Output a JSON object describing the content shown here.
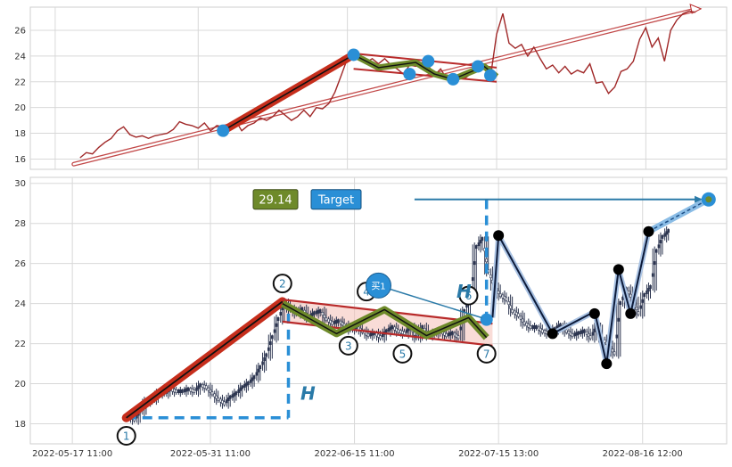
{
  "colors": {
    "price_line": "#a02828",
    "candle": "#2c3550",
    "trend_fill": "#c62e1c",
    "pattern_fill": "#6e8a2a",
    "channel": "#b82a2a",
    "marker": "#2a8fd6",
    "target_box": "#2a8fd6",
    "value_box": "#6e8a2a",
    "wave_line": "#0d1b3a",
    "grid": "#d8d8d8"
  },
  "chart_data": [
    {
      "type": "line",
      "panel": "top",
      "x_range": [
        0,
        100
      ],
      "ylim": [
        15.2,
        27.8
      ],
      "y_ticks": [
        16,
        18,
        20,
        22,
        24,
        26
      ],
      "grid": true,
      "price_path": [
        [
          4,
          16.1
        ],
        [
          5,
          16.5
        ],
        [
          6,
          16.4
        ],
        [
          7,
          16.9
        ],
        [
          8,
          17.3
        ],
        [
          9,
          17.6
        ],
        [
          10,
          18.2
        ],
        [
          11,
          18.5
        ],
        [
          12,
          17.9
        ],
        [
          13,
          17.7
        ],
        [
          14,
          17.8
        ],
        [
          15,
          17.6
        ],
        [
          16,
          17.8
        ],
        [
          17,
          17.9
        ],
        [
          18,
          18.0
        ],
        [
          19,
          18.3
        ],
        [
          20,
          18.9
        ],
        [
          21,
          18.7
        ],
        [
          22,
          18.6
        ],
        [
          23,
          18.4
        ],
        [
          24,
          18.8
        ],
        [
          25,
          18.2
        ],
        [
          26,
          18.6
        ],
        [
          27,
          18.5
        ],
        [
          28,
          18.4
        ],
        [
          29,
          19.0
        ],
        [
          30,
          18.2
        ],
        [
          31,
          18.6
        ],
        [
          32,
          18.8
        ],
        [
          33,
          19.2
        ],
        [
          34,
          19.0
        ],
        [
          35,
          19.3
        ],
        [
          36,
          19.8
        ],
        [
          37,
          19.4
        ],
        [
          38,
          19.0
        ],
        [
          39,
          19.3
        ],
        [
          40,
          19.8
        ],
        [
          41,
          19.3
        ],
        [
          42,
          20.0
        ],
        [
          43,
          19.9
        ],
        [
          44,
          20.3
        ],
        [
          45,
          21.2
        ],
        [
          46,
          22.5
        ],
        [
          47,
          23.8
        ],
        [
          48,
          24.1
        ],
        [
          49,
          23.9
        ],
        [
          50,
          23.5
        ],
        [
          51,
          23.8
        ],
        [
          52,
          23.4
        ],
        [
          53,
          23.8
        ],
        [
          54,
          23.3
        ],
        [
          55,
          23.0
        ],
        [
          56,
          22.6
        ],
        [
          57,
          23.3
        ],
        [
          58,
          23.2
        ],
        [
          59,
          23.5
        ],
        [
          60,
          23.3
        ],
        [
          61,
          22.5
        ],
        [
          62,
          23.0
        ],
        [
          63,
          22.2
        ],
        [
          64,
          22.0
        ],
        [
          65,
          22.5
        ],
        [
          66,
          22.3
        ],
        [
          67,
          22.7
        ],
        [
          68,
          23.2
        ],
        [
          69,
          23.3
        ],
        [
          70,
          22.3
        ],
        [
          71,
          25.7
        ],
        [
          72,
          27.3
        ],
        [
          73,
          25.0
        ],
        [
          74,
          24.6
        ],
        [
          75,
          24.9
        ],
        [
          76,
          24.0
        ],
        [
          77,
          24.7
        ],
        [
          78,
          23.8
        ],
        [
          79,
          23.0
        ],
        [
          80,
          23.3
        ],
        [
          81,
          22.7
        ],
        [
          82,
          23.2
        ],
        [
          83,
          22.6
        ],
        [
          84,
          22.9
        ],
        [
          85,
          22.7
        ],
        [
          86,
          23.4
        ],
        [
          87,
          21.9
        ],
        [
          88,
          22.0
        ],
        [
          89,
          21.1
        ],
        [
          90,
          21.6
        ],
        [
          91,
          22.8
        ],
        [
          92,
          23.0
        ],
        [
          93,
          23.6
        ],
        [
          94,
          25.3
        ],
        [
          95,
          26.2
        ],
        [
          96,
          24.7
        ],
        [
          97,
          25.4
        ],
        [
          98,
          23.6
        ],
        [
          99,
          26.0
        ],
        [
          100,
          26.8
        ],
        [
          101,
          27.3
        ],
        [
          102,
          27.5
        ],
        [
          103,
          27.4
        ]
      ],
      "regression_line": [
        [
          3,
          15.6
        ],
        [
          103,
          27.6
        ]
      ],
      "trend_leg": [
        [
          27,
          18.2
        ],
        [
          48,
          24.1
        ]
      ],
      "pattern_points": [
        [
          48,
          24.1
        ],
        [
          52,
          23.1
        ],
        [
          58,
          23.5
        ],
        [
          61,
          22.6
        ],
        [
          64,
          22.2
        ],
        [
          69,
          23.2
        ],
        [
          71,
          22.4
        ]
      ],
      "upper_channel": [
        [
          48,
          24.2
        ],
        [
          71,
          23.1
        ]
      ],
      "lower_channel": [
        [
          48,
          23.0
        ],
        [
          71,
          22.0
        ]
      ],
      "markers": [
        [
          27,
          18.2
        ],
        [
          48,
          24.1
        ],
        [
          57,
          22.6
        ],
        [
          60,
          23.6
        ],
        [
          64,
          22.2
        ],
        [
          68,
          23.2
        ],
        [
          70,
          22.5
        ]
      ]
    },
    {
      "type": "candlestick",
      "panel": "bottom",
      "x_range": [
        0,
        100
      ],
      "ylim": [
        17.0,
        30.3
      ],
      "y_ticks": [
        18,
        20,
        22,
        24,
        26,
        28,
        30
      ],
      "x_tick_positions": [
        0,
        23,
        47,
        71,
        95
      ],
      "x_tick_labels": [
        "2022-05-17 11:00",
        "2022-05-31 11:00",
        "2022-06-15 11:00",
        "2022-07-15 13:00",
        "2022-08-16 12:00"
      ],
      "grid": true,
      "close_path": [
        [
          9,
          18.4
        ],
        [
          10,
          18.2
        ],
        [
          11,
          18.6
        ],
        [
          12,
          19.1
        ],
        [
          13,
          19.2
        ],
        [
          14,
          19.5
        ],
        [
          15,
          19.5
        ],
        [
          16,
          19.7
        ],
        [
          17,
          19.6
        ],
        [
          18,
          19.6
        ],
        [
          19,
          19.7
        ],
        [
          20,
          19.6
        ],
        [
          21,
          19.9
        ],
        [
          22,
          19.8
        ],
        [
          23,
          19.5
        ],
        [
          24,
          19.2
        ],
        [
          25,
          19.0
        ],
        [
          26,
          19.3
        ],
        [
          27,
          19.5
        ],
        [
          28,
          19.8
        ],
        [
          29,
          20.0
        ],
        [
          30,
          20.3
        ],
        [
          31,
          20.8
        ],
        [
          32,
          21.4
        ],
        [
          33,
          22.3
        ],
        [
          34,
          23.2
        ],
        [
          35,
          24.0
        ],
        [
          36,
          23.7
        ],
        [
          37,
          23.5
        ],
        [
          38,
          23.7
        ],
        [
          39,
          23.3
        ],
        [
          40,
          23.5
        ],
        [
          41,
          23.6
        ],
        [
          42,
          23.2
        ],
        [
          43,
          23.0
        ],
        [
          44,
          23.1
        ],
        [
          45,
          22.9
        ],
        [
          46,
          22.7
        ],
        [
          47,
          22.8
        ],
        [
          48,
          22.6
        ],
        [
          49,
          22.4
        ],
        [
          50,
          22.5
        ],
        [
          51,
          22.3
        ],
        [
          52,
          22.6
        ],
        [
          53,
          22.8
        ],
        [
          54,
          22.6
        ],
        [
          55,
          22.5
        ],
        [
          56,
          22.8
        ],
        [
          57,
          22.3
        ],
        [
          58,
          22.8
        ],
        [
          59,
          22.4
        ],
        [
          60,
          22.5
        ],
        [
          61,
          22.6
        ],
        [
          62,
          22.4
        ],
        [
          63,
          22.5
        ],
        [
          64,
          22.3
        ],
        [
          65,
          23.6
        ],
        [
          66,
          24.4
        ],
        [
          67,
          26.8
        ],
        [
          68,
          27.2
        ],
        [
          69,
          25.6
        ],
        [
          70,
          24.8
        ],
        [
          71,
          24.4
        ],
        [
          72,
          24.2
        ],
        [
          73,
          23.6
        ],
        [
          74,
          23.4
        ],
        [
          75,
          23.0
        ],
        [
          76,
          22.8
        ],
        [
          77,
          22.8
        ],
        [
          78,
          22.6
        ],
        [
          79,
          22.5
        ],
        [
          80,
          22.7
        ],
        [
          81,
          22.9
        ],
        [
          82,
          22.6
        ],
        [
          83,
          22.4
        ],
        [
          84,
          22.5
        ],
        [
          85,
          22.6
        ],
        [
          86,
          22.3
        ],
        [
          87,
          22.8
        ],
        [
          88,
          22.2
        ],
        [
          89,
          21.9
        ],
        [
          90,
          21.5
        ],
        [
          91,
          24.0
        ],
        [
          92,
          24.7
        ],
        [
          93,
          24.2
        ],
        [
          94,
          23.5
        ],
        [
          95,
          24.4
        ],
        [
          96,
          24.8
        ],
        [
          97,
          26.6
        ],
        [
          98,
          27.3
        ],
        [
          99,
          27.6
        ]
      ],
      "trend_leg": [
        [
          9,
          18.3
        ],
        [
          35,
          24.1
        ]
      ],
      "pattern_points": [
        [
          35,
          24.0
        ],
        [
          44,
          22.5
        ],
        [
          52,
          23.7
        ],
        [
          59,
          22.4
        ],
        [
          66,
          23.3
        ],
        [
          69,
          22.3
        ]
      ],
      "upper_channel": [
        [
          35,
          24.2
        ],
        [
          70,
          23.0
        ]
      ],
      "lower_channel": [
        [
          35,
          23.1
        ],
        [
          70,
          21.9
        ]
      ],
      "pattern_fill_polygon": [
        [
          35,
          24.2
        ],
        [
          70,
          23.0
        ],
        [
          70,
          21.9
        ],
        [
          35,
          23.1
        ]
      ],
      "wave_points": [
        [
          70,
          23.3
        ],
        [
          71,
          27.4
        ],
        [
          80,
          22.5
        ],
        [
          87,
          23.6
        ],
        [
          89,
          21.0
        ],
        [
          91,
          25.7
        ],
        [
          93,
          23.5
        ],
        [
          96,
          27.6
        ]
      ],
      "projection": [
        [
          96,
          27.6
        ],
        [
          106,
          29.2
        ]
      ],
      "target_horizontal": [
        [
          57,
          29.2
        ],
        [
          105,
          29.2
        ]
      ],
      "target_vertical": [
        [
          69,
          29.2
        ],
        [
          69,
          23.2
        ]
      ],
      "height_vertical": [
        [
          36,
          23.5
        ],
        [
          36,
          18.3
        ]
      ],
      "height_horizontal": [
        [
          9,
          18.3
        ],
        [
          36,
          18.3
        ]
      ],
      "black_dots": [
        [
          71,
          27.4
        ],
        [
          80,
          22.5
        ],
        [
          87,
          23.5
        ],
        [
          89,
          21.0
        ],
        [
          91,
          25.7
        ],
        [
          93,
          23.5
        ],
        [
          96,
          27.6
        ]
      ],
      "target_dot": [
        106,
        29.2
      ],
      "blue_dot": [
        69,
        23.2
      ],
      "pattern_labels": [
        {
          "label": "1",
          "x": 9,
          "y": 17.4
        },
        {
          "label": "2",
          "x": 35,
          "y": 25.0
        },
        {
          "label": "3",
          "x": 46,
          "y": 21.9
        },
        {
          "label": "4",
          "x": 49,
          "y": 24.6
        },
        {
          "label": "5",
          "x": 55,
          "y": 21.5
        },
        {
          "label": "6",
          "x": 66,
          "y": 24.4
        },
        {
          "label": "7",
          "x": 69,
          "y": 21.5
        }
      ],
      "height_labels": [
        {
          "label": "H",
          "x": 38,
          "y": 19.2
        },
        {
          "label": "H",
          "x": 64,
          "y": 24.3
        }
      ],
      "buy_label": {
        "label": "买1",
        "x": 51,
        "y": 24.9
      },
      "value_box_text": "29.14",
      "target_box_text": "Target"
    }
  ]
}
